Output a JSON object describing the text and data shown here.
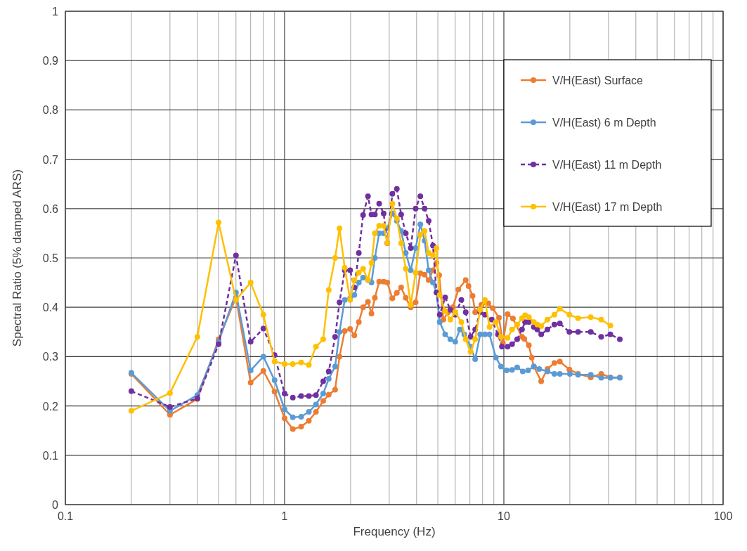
{
  "chart_data": {
    "type": "line",
    "xlabel": "Frequency (Hz)",
    "ylabel": "Spectral Ratio (5% damped ARS)",
    "log": "x",
    "xlim": [
      0.1,
      100
    ],
    "xticks": [
      0.1,
      1,
      10,
      100
    ],
    "ylim": [
      0,
      1
    ],
    "yticks": [
      0,
      0.1,
      0.2,
      0.3,
      0.4,
      0.5,
      0.6,
      0.7,
      0.8,
      0.9,
      1
    ],
    "grid": true,
    "legend": "top right",
    "marker": "circle",
    "series": [
      {
        "name": "V/H(East) Surface",
        "color": "#ed7d31",
        "line_style": "solid",
        "x": [
          0.2,
          0.3,
          0.4,
          0.5,
          0.6,
          0.7,
          0.8,
          0.9,
          1.0,
          1.09,
          1.19,
          1.29,
          1.39,
          1.5,
          1.59,
          1.7,
          1.78,
          1.88,
          1.99,
          2.08,
          2.18,
          2.28,
          2.4,
          2.49,
          2.58,
          2.7,
          2.83,
          2.94,
          3.1,
          3.25,
          3.4,
          3.57,
          3.76,
          3.96,
          4.16,
          4.35,
          4.54,
          4.75,
          4.93,
          5.07,
          5.3,
          5.57,
          5.85,
          6.2,
          6.7,
          6.9,
          7.2,
          7.4,
          7.9,
          8.5,
          8.9,
          9.5,
          9.9,
          10.4,
          11,
          12.1,
          12.4,
          13,
          13.4,
          13.7,
          14.8,
          15.8,
          17,
          18,
          19.9,
          21.8,
          24.9,
          27.8,
          30.6,
          33.8
        ],
        "values": [
          0.265,
          0.182,
          0.214,
          0.335,
          0.42,
          0.247,
          0.271,
          0.229,
          0.175,
          0.153,
          0.158,
          0.17,
          0.188,
          0.21,
          0.223,
          0.233,
          0.3,
          0.352,
          0.356,
          0.343,
          0.37,
          0.4,
          0.411,
          0.387,
          0.419,
          0.452,
          0.452,
          0.45,
          0.418,
          0.429,
          0.44,
          0.419,
          0.4,
          0.41,
          0.469,
          0.466,
          0.455,
          0.475,
          0.49,
          0.465,
          0.375,
          0.39,
          0.4,
          0.436,
          0.455,
          0.443,
          0.423,
          0.39,
          0.405,
          0.408,
          0.398,
          0.379,
          0.328,
          0.386,
          0.377,
          0.34,
          0.336,
          0.323,
          0.298,
          0.28,
          0.25,
          0.275,
          0.287,
          0.29,
          0.274,
          0.265,
          0.258,
          0.265,
          0.258,
          0.258
        ]
      },
      {
        "name": "V/H(East) 6 m Depth",
        "color": "#5b9bd5",
        "line_style": "solid",
        "x": [
          0.2,
          0.3,
          0.4,
          0.5,
          0.6,
          0.7,
          0.8,
          0.9,
          1.0,
          1.09,
          1.19,
          1.29,
          1.39,
          1.5,
          1.59,
          1.7,
          1.78,
          1.88,
          1.99,
          2.08,
          2.18,
          2.28,
          2.4,
          2.49,
          2.58,
          2.7,
          2.83,
          2.94,
          3.1,
          3.25,
          3.4,
          3.57,
          3.76,
          3.96,
          4.16,
          4.35,
          4.54,
          4.75,
          4.93,
          5.1,
          5.4,
          5.7,
          6.0,
          6.3,
          6.6,
          7.05,
          7.4,
          7.8,
          8.2,
          8.6,
          9.2,
          9.7,
          10.3,
          10.9,
          11.5,
          12.2,
          12.9,
          13.7,
          14.5,
          15.8,
          17,
          18,
          20,
          21.8,
          24.9,
          27.8,
          30.6,
          33.8
        ],
        "values": [
          0.267,
          0.19,
          0.222,
          0.33,
          0.43,
          0.272,
          0.3,
          0.252,
          0.193,
          0.177,
          0.178,
          0.188,
          0.203,
          0.225,
          0.255,
          0.28,
          0.35,
          0.415,
          0.418,
          0.425,
          0.45,
          0.46,
          0.455,
          0.45,
          0.5,
          0.55,
          0.55,
          0.56,
          0.59,
          0.575,
          0.555,
          0.51,
          0.475,
          0.52,
          0.568,
          0.535,
          0.475,
          0.45,
          0.43,
          0.37,
          0.345,
          0.335,
          0.33,
          0.355,
          0.345,
          0.32,
          0.295,
          0.345,
          0.345,
          0.345,
          0.298,
          0.28,
          0.272,
          0.273,
          0.278,
          0.27,
          0.272,
          0.28,
          0.275,
          0.27,
          0.265,
          0.265,
          0.265,
          0.263,
          0.263,
          0.257,
          0.257,
          0.257
        ]
      },
      {
        "name": "V/H(East) 11 m Depth",
        "color": "#7030a0",
        "line_style": "dashed",
        "x": [
          0.2,
          0.3,
          0.4,
          0.5,
          0.6,
          0.7,
          0.8,
          0.9,
          1.0,
          1.09,
          1.19,
          1.29,
          1.39,
          1.5,
          1.59,
          1.7,
          1.78,
          1.88,
          1.99,
          2.08,
          2.18,
          2.28,
          2.4,
          2.49,
          2.58,
          2.7,
          2.83,
          2.94,
          3.1,
          3.25,
          3.4,
          3.57,
          3.76,
          3.96,
          4.16,
          4.35,
          4.54,
          4.75,
          4.93,
          5.1,
          5.4,
          5.7,
          6.0,
          6.4,
          6.7,
          7.05,
          7.4,
          7.8,
          8.2,
          8.8,
          9.4,
          9.8,
          10.4,
          10.9,
          11.5,
          12.1,
          12.5,
          13,
          13.7,
          14.2,
          14.8,
          15.8,
          17,
          18,
          19.9,
          21.8,
          24.9,
          27.8,
          30.6,
          33.8
        ],
        "values": [
          0.23,
          0.198,
          0.215,
          0.325,
          0.505,
          0.33,
          0.357,
          0.303,
          0.225,
          0.217,
          0.22,
          0.22,
          0.222,
          0.25,
          0.27,
          0.34,
          0.41,
          0.475,
          0.475,
          0.44,
          0.51,
          0.587,
          0.625,
          0.588,
          0.588,
          0.61,
          0.59,
          0.53,
          0.63,
          0.64,
          0.588,
          0.55,
          0.52,
          0.6,
          0.625,
          0.6,
          0.575,
          0.525,
          0.43,
          0.385,
          0.42,
          0.395,
          0.385,
          0.415,
          0.39,
          0.34,
          0.355,
          0.39,
          0.385,
          0.375,
          0.345,
          0.32,
          0.32,
          0.325,
          0.335,
          0.355,
          0.37,
          0.37,
          0.36,
          0.355,
          0.345,
          0.355,
          0.365,
          0.367,
          0.35,
          0.35,
          0.35,
          0.34,
          0.345,
          0.335
        ]
      },
      {
        "name": "V/H(East) 17 m Depth",
        "color": "#ffc000",
        "line_style": "solid",
        "x": [
          0.2,
          0.3,
          0.4,
          0.5,
          0.6,
          0.7,
          0.8,
          0.9,
          1.0,
          1.09,
          1.19,
          1.29,
          1.39,
          1.5,
          1.59,
          1.7,
          1.78,
          1.88,
          1.99,
          2.08,
          2.18,
          2.28,
          2.4,
          2.49,
          2.58,
          2.7,
          2.83,
          2.94,
          3.1,
          3.25,
          3.4,
          3.57,
          3.76,
          3.96,
          4.16,
          4.35,
          4.54,
          4.75,
          4.93,
          5.1,
          5.4,
          5.7,
          6.0,
          6.4,
          6.7,
          7.05,
          7.4,
          7.8,
          8.2,
          8.6,
          9.2,
          9.7,
          10.4,
          10.9,
          11.5,
          12.1,
          12.5,
          13,
          13.7,
          14.2,
          14.8,
          15.8,
          17,
          18,
          19.9,
          21.8,
          24.9,
          27.8,
          30.6
        ],
        "values": [
          0.19,
          0.226,
          0.34,
          0.572,
          0.415,
          0.45,
          0.385,
          0.29,
          0.285,
          0.285,
          0.288,
          0.283,
          0.32,
          0.335,
          0.435,
          0.5,
          0.56,
          0.48,
          0.415,
          0.455,
          0.47,
          0.478,
          0.455,
          0.49,
          0.55,
          0.565,
          0.565,
          0.53,
          0.61,
          0.58,
          0.53,
          0.478,
          0.405,
          0.47,
          0.547,
          0.555,
          0.51,
          0.505,
          0.52,
          0.425,
          0.392,
          0.375,
          0.39,
          0.37,
          0.335,
          0.31,
          0.335,
          0.395,
          0.415,
          0.36,
          0.37,
          0.34,
          0.338,
          0.355,
          0.365,
          0.378,
          0.384,
          0.38,
          0.37,
          0.365,
          0.362,
          0.375,
          0.385,
          0.397,
          0.385,
          0.378,
          0.38,
          0.375,
          0.363
        ]
      }
    ]
  }
}
